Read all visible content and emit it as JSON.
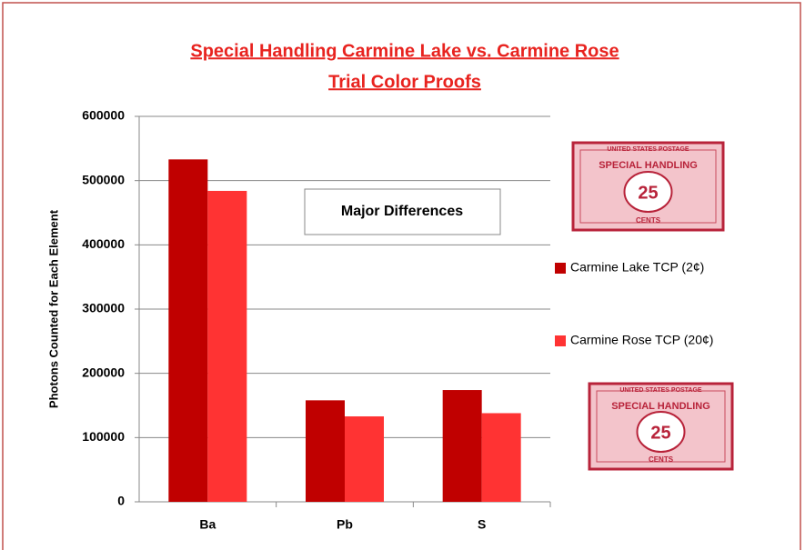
{
  "chart_data": {
    "type": "bar",
    "title": [
      "Special Handling Carmine Lake vs. Carmine Rose",
      "Trial Color Proofs"
    ],
    "y_label": "Photons Counted for Each Element",
    "annotation": "Major Differences",
    "categories": [
      "Ba",
      "Pb",
      "S"
    ],
    "series": [
      {
        "name": "Carmine Lake TCP (2¢)",
        "color": "#c00000",
        "values": [
          533000,
          158000,
          174000
        ]
      },
      {
        "name": "Carmine Rose TCP (20¢)",
        "color": "#ff3333",
        "values": [
          484000,
          133000,
          138000
        ]
      }
    ],
    "ylim": [
      0,
      600000
    ],
    "yticks": [
      0,
      100000,
      200000,
      300000,
      400000,
      500000,
      600000
    ],
    "grid": true,
    "stamp_labels": [
      "UNITED STATES POSTAGE",
      "SPECIAL HANDLING",
      "25",
      "CENTS"
    ]
  }
}
